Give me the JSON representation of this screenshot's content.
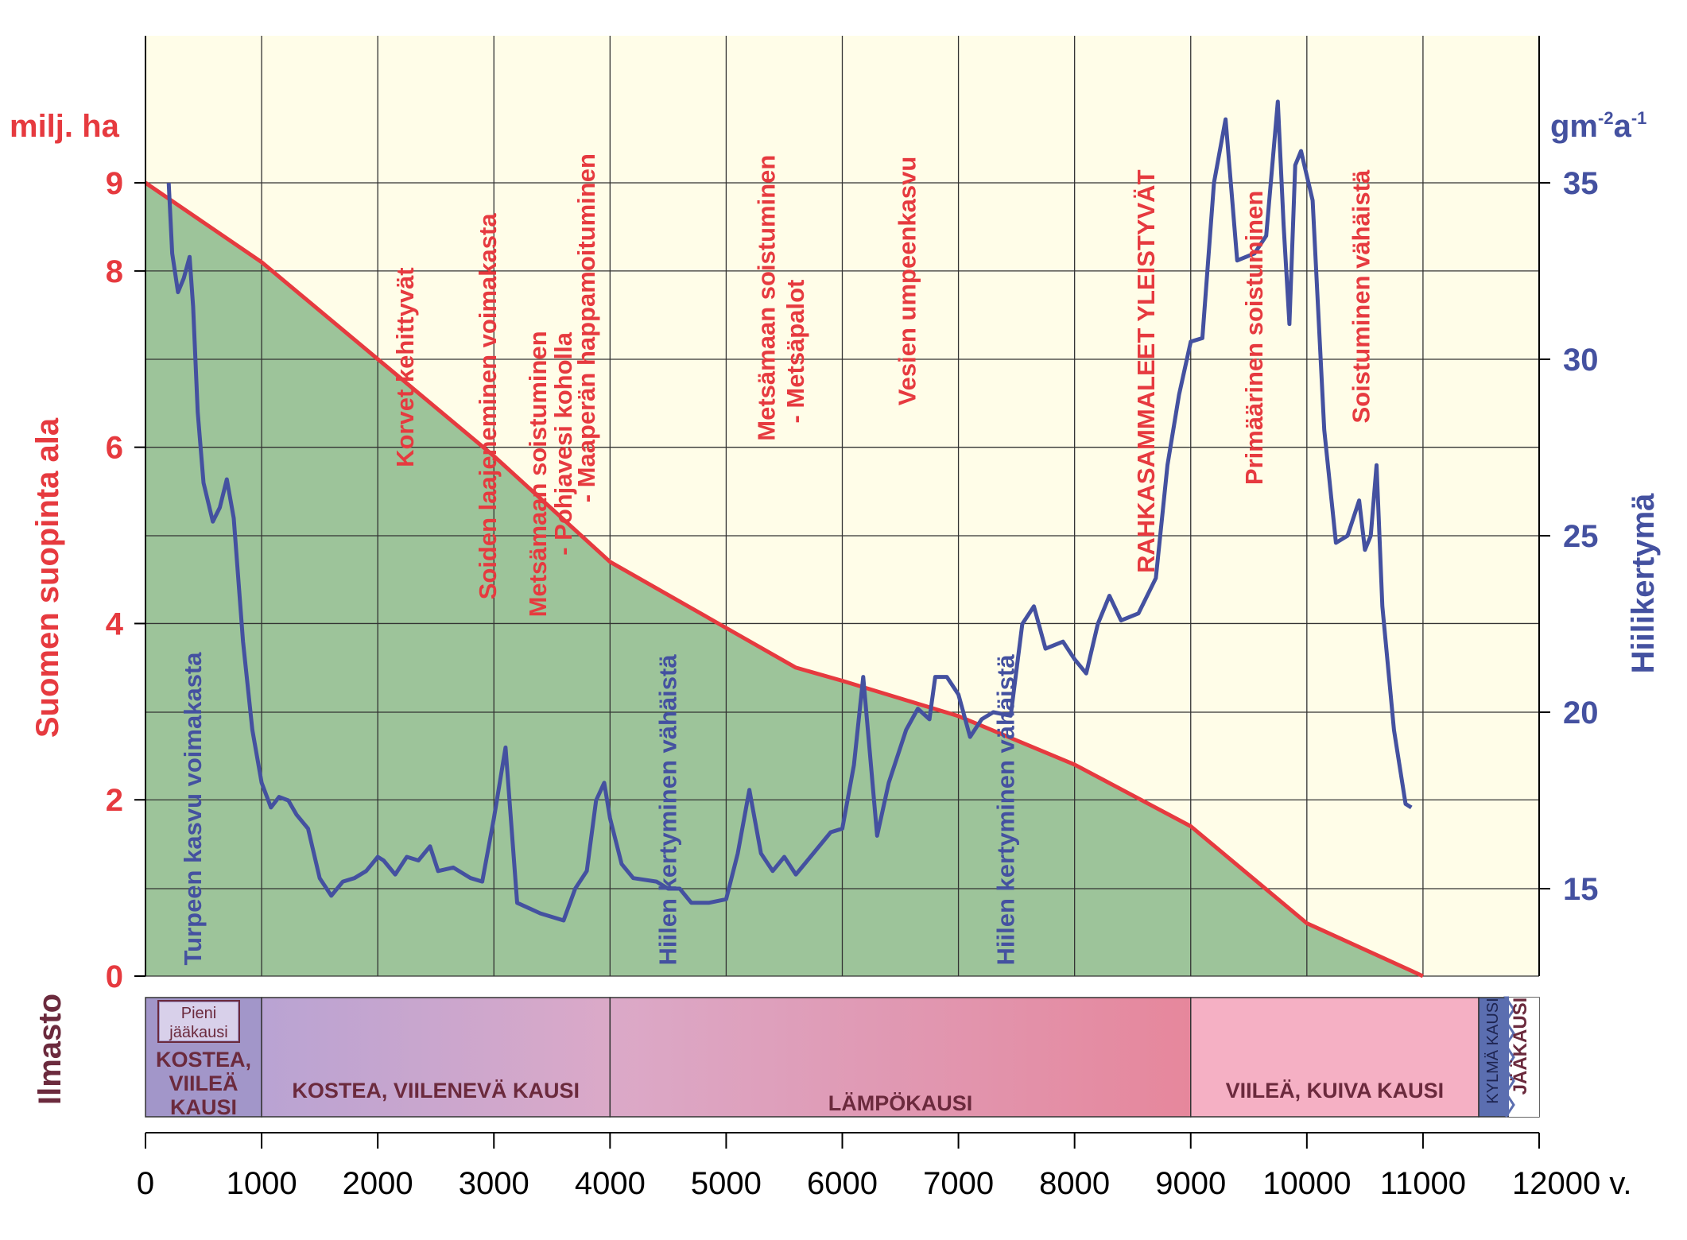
{
  "chart_data": {
    "type": "line",
    "x_axis": {
      "ticks": [
        0,
        1000,
        2000,
        3000,
        4000,
        5000,
        6000,
        7000,
        8000,
        9000,
        10000,
        11000,
        12000
      ],
      "tick_labels": [
        "0",
        "1000",
        "2000",
        "3000",
        "4000",
        "5000",
        "6000",
        "7000",
        "8000",
        "9000",
        "10000",
        "11000",
        "12000 v."
      ],
      "range": [
        0,
        12000
      ]
    },
    "y_left": {
      "unit": "milj. ha",
      "title": "Suomen suopinta ala",
      "ticks": [
        0,
        2,
        4,
        6,
        8,
        9
      ],
      "tick_labels": [
        "0",
        "2",
        "4",
        "6",
        "8",
        "9"
      ],
      "range": [
        0,
        9.5
      ]
    },
    "y_right": {
      "unit_base": "gm",
      "unit_sup1": "-2",
      "unit_mid": "a",
      "unit_sup2": "-1",
      "title": "Hiilikertymä",
      "ticks": [
        15,
        20,
        25,
        30,
        35
      ],
      "tick_labels": [
        "15",
        "20",
        "25",
        "30",
        "35"
      ],
      "range": [
        12.4,
        37.6
      ]
    },
    "grid": true,
    "series": [
      {
        "axis": "left",
        "color": "#e63a3f",
        "fill": "#9dc49a",
        "points": [
          [
            0,
            9.0
          ],
          [
            1000,
            8.1
          ],
          [
            2000,
            7.0
          ],
          [
            3000,
            5.9
          ],
          [
            4000,
            4.7
          ],
          [
            5000,
            3.95
          ],
          [
            5600,
            3.5
          ],
          [
            6000,
            3.35
          ],
          [
            7000,
            2.95
          ],
          [
            8000,
            2.4
          ],
          [
            9000,
            1.7
          ],
          [
            10000,
            0.6
          ],
          [
            11000,
            0.0
          ]
        ]
      },
      {
        "axis": "right",
        "color": "#4451a0",
        "points": [
          [
            200,
            35.0
          ],
          [
            230,
            33.0
          ],
          [
            280,
            31.9
          ],
          [
            330,
            32.3
          ],
          [
            380,
            32.9
          ],
          [
            410,
            31.5
          ],
          [
            450,
            28.5
          ],
          [
            500,
            26.5
          ],
          [
            580,
            25.4
          ],
          [
            640,
            25.8
          ],
          [
            700,
            26.6
          ],
          [
            760,
            25.5
          ],
          [
            840,
            22.0
          ],
          [
            920,
            19.5
          ],
          [
            1000,
            18.0
          ],
          [
            1080,
            17.3
          ],
          [
            1150,
            17.6
          ],
          [
            1230,
            17.5
          ],
          [
            1300,
            17.1
          ],
          [
            1400,
            16.7
          ],
          [
            1500,
            15.3
          ],
          [
            1600,
            14.8
          ],
          [
            1700,
            15.2
          ],
          [
            1800,
            15.3
          ],
          [
            1900,
            15.5
          ],
          [
            2000,
            15.9
          ],
          [
            2050,
            15.8
          ],
          [
            2150,
            15.4
          ],
          [
            2250,
            15.9
          ],
          [
            2350,
            15.8
          ],
          [
            2450,
            16.2
          ],
          [
            2520,
            15.5
          ],
          [
            2650,
            15.6
          ],
          [
            2800,
            15.3
          ],
          [
            2900,
            15.2
          ],
          [
            3000,
            17.0
          ],
          [
            3100,
            19.0
          ],
          [
            3200,
            14.6
          ],
          [
            3400,
            14.3
          ],
          [
            3600,
            14.1
          ],
          [
            3700,
            15.0
          ],
          [
            3800,
            15.5
          ],
          [
            3880,
            17.5
          ],
          [
            3950,
            18.0
          ],
          [
            4000,
            17.0
          ],
          [
            4100,
            15.7
          ],
          [
            4200,
            15.3
          ],
          [
            4400,
            15.2
          ],
          [
            4500,
            15.0
          ],
          [
            4600,
            15.0
          ],
          [
            4700,
            14.6
          ],
          [
            4850,
            14.6
          ],
          [
            5000,
            14.7
          ],
          [
            5100,
            16.0
          ],
          [
            5200,
            17.8
          ],
          [
            5300,
            16.0
          ],
          [
            5400,
            15.5
          ],
          [
            5500,
            15.9
          ],
          [
            5600,
            15.4
          ],
          [
            5750,
            16.0
          ],
          [
            5900,
            16.6
          ],
          [
            6000,
            16.7
          ],
          [
            6100,
            18.5
          ],
          [
            6180,
            21.0
          ],
          [
            6300,
            16.5
          ],
          [
            6400,
            18.0
          ],
          [
            6550,
            19.5
          ],
          [
            6650,
            20.1
          ],
          [
            6750,
            19.8
          ],
          [
            6800,
            21.0
          ],
          [
            6900,
            21.0
          ],
          [
            7000,
            20.5
          ],
          [
            7100,
            19.3
          ],
          [
            7200,
            19.8
          ],
          [
            7300,
            20.0
          ],
          [
            7450,
            19.9
          ],
          [
            7550,
            22.5
          ],
          [
            7650,
            23.0
          ],
          [
            7750,
            21.8
          ],
          [
            7900,
            22.0
          ],
          [
            8000,
            21.5
          ],
          [
            8100,
            21.1
          ],
          [
            8200,
            22.5
          ],
          [
            8300,
            23.3
          ],
          [
            8400,
            22.6
          ],
          [
            8550,
            22.8
          ],
          [
            8700,
            23.8
          ],
          [
            8800,
            27.0
          ],
          [
            8900,
            29.0
          ],
          [
            9000,
            30.5
          ],
          [
            9100,
            30.6
          ],
          [
            9200,
            35.0
          ],
          [
            9300,
            36.8
          ],
          [
            9400,
            32.8
          ],
          [
            9550,
            33.0
          ],
          [
            9650,
            33.5
          ],
          [
            9750,
            37.3
          ],
          [
            9800,
            33.8
          ],
          [
            9850,
            31.0
          ],
          [
            9900,
            35.5
          ],
          [
            9950,
            35.9
          ],
          [
            10050,
            34.5
          ],
          [
            10150,
            28.0
          ],
          [
            10250,
            24.8
          ],
          [
            10350,
            25.0
          ],
          [
            10450,
            26.0
          ],
          [
            10500,
            24.6
          ],
          [
            10550,
            25.0
          ],
          [
            10600,
            27.0
          ],
          [
            10650,
            23.0
          ],
          [
            10750,
            19.5
          ],
          [
            10850,
            17.4
          ],
          [
            10900,
            17.3
          ]
        ]
      }
    ],
    "annotations": [
      {
        "text": "Korvet kehittyvät",
        "x": 2240,
        "y": 5.7,
        "color": "#e63a3f"
      },
      {
        "text": "Soiden laajeneminen voimakasta",
        "x": 2950,
        "y": 4.2,
        "color": "#e63a3f"
      },
      {
        "text": "Metsämaan soistuminen",
        "x": 3380,
        "y": 4.0,
        "color": "#e63a3f"
      },
      {
        "text": "- Pohjavesi koholla",
        "x": 3600,
        "y": 4.7,
        "color": "#e63a3f"
      },
      {
        "text": "- Maaperän happamoituminen",
        "x": 3800,
        "y": 5.3,
        "color": "#e63a3f"
      },
      {
        "text": "Metsämaan soistuminen",
        "x": 5350,
        "y": 6.0,
        "color": "#e63a3f"
      },
      {
        "text": "- Metsäpalot",
        "x": 5600,
        "y": 6.2,
        "color": "#e63a3f"
      },
      {
        "text": "Vesien umpeenkasvu",
        "x": 6560,
        "y": 6.4,
        "color": "#e63a3f"
      },
      {
        "text": "RAHKASAMMALEET YLEISTYVÄT",
        "x": 8620,
        "y": 4.5,
        "color": "#e63a3f"
      },
      {
        "text": "Primäärinen soistuminen",
        "x": 9550,
        "y": 5.5,
        "color": "#e63a3f"
      },
      {
        "text": "Soistuminen vähäistä",
        "x": 10470,
        "y": 6.2,
        "color": "#e63a3f"
      },
      {
        "text": "Turpeen kasvu voimakasta",
        "x": 410,
        "y": 0.05,
        "color": "#4451a0"
      },
      {
        "text": "Hiilen kertyminen vähäistä",
        "x": 4500,
        "y": 0.05,
        "color": "#4451a0"
      },
      {
        "text": "Hiilen kertyminen vähäistä",
        "x": 7410,
        "y": 0.05,
        "color": "#4451a0"
      }
    ]
  },
  "climate_band": {
    "label": "Ilmasto",
    "segments": [
      {
        "from": 0,
        "to": 1000,
        "label_lines": [
          "KOSTEA,",
          "VIILEÄ",
          "KAUSI"
        ],
        "inset_lines": [
          "Pieni",
          "jääkausi"
        ],
        "color_from": "#a296c9",
        "color_to": "#a296c9"
      },
      {
        "from": 1000,
        "to": 4000,
        "label_lines": [
          "KOSTEA, VIILENEVÄ KAUSI"
        ],
        "color_from": "#b9a3d3",
        "color_to": "#dba9c8"
      },
      {
        "from": 4000,
        "to": 9000,
        "label_lines": [
          "LÄMPÖKAUSI"
        ],
        "color_from": "#dba9c8",
        "color_to": "#e6879c"
      },
      {
        "from": 9000,
        "to": 11480,
        "label_lines": [
          "VIILEÄ, KUIVA KAUSI"
        ],
        "color_from": "#f5b0c4",
        "color_to": "#f5b0c4"
      },
      {
        "from": 11480,
        "to": 12000,
        "label_lines": [
          "KYLMÄ KAUSI",
          "JÄÄKAUSI"
        ],
        "color_from": "#5b6eb0",
        "color_to": "#5b6eb0"
      }
    ]
  },
  "colors": {
    "plot_bg": "#fffde8",
    "left_axis": "#e63a3f",
    "right_axis": "#4451a0",
    "climate_label": "#6b2a3d",
    "climate_text": "#6b2a3d"
  }
}
